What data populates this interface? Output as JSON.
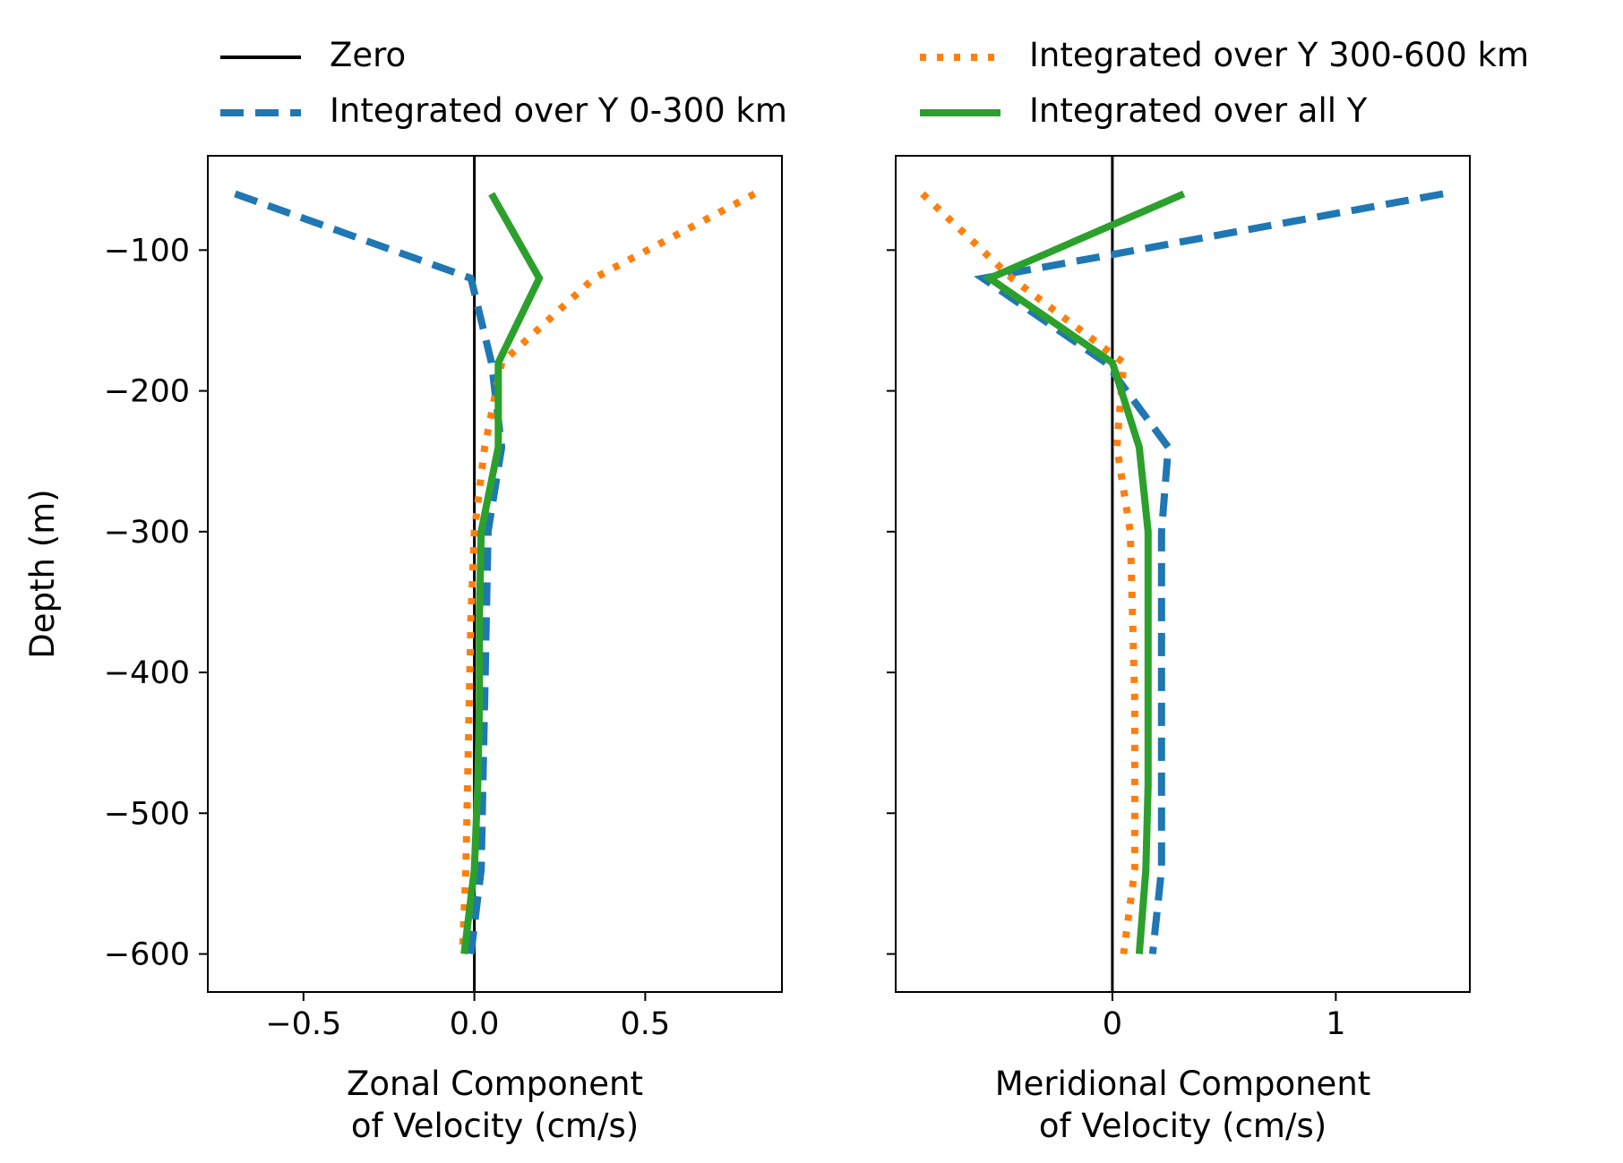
{
  "figure": {
    "legend": {
      "placement": "top, two columns above both panels",
      "entries": [
        {
          "key": "zero",
          "label": "Zero",
          "color": "#000000",
          "style": "solid"
        },
        {
          "key": "y0_300",
          "label": "Integrated over Y 0-300 km",
          "color": "#1f77b4",
          "style": "dashed"
        },
        {
          "key": "y300_600",
          "label": "Integrated over Y 300-600 km",
          "color": "#ff7f0e",
          "style": "dotted"
        },
        {
          "key": "all",
          "label": "Integrated over all Y",
          "color": "#2ca02c",
          "style": "solid"
        }
      ]
    }
  },
  "chart_data": [
    {
      "type": "line",
      "orientation": "profile (x = velocity, y = depth)",
      "xlabel_lines": [
        "Zonal Component",
        " of Velocity (cm/s)"
      ],
      "ylabel": "Depth (m)",
      "xlim": [
        -0.78,
        0.9
      ],
      "ylim": [
        -627,
        -33
      ],
      "xticks": [
        -0.5,
        0.0,
        0.5
      ],
      "xtick_labels": [
        "−0.5",
        "0.0",
        "0.5"
      ],
      "yticks": [
        -100,
        -200,
        -300,
        -400,
        -500,
        -600
      ],
      "ytick_labels": [
        "−100",
        "−200",
        "−300",
        "−400",
        "−500",
        "−600"
      ],
      "grid": false,
      "depth": [
        -60,
        -120,
        -180,
        -240,
        -300,
        -360,
        -420,
        -480,
        -540,
        -600
      ],
      "series": [
        {
          "key": "zero",
          "x": [
            0,
            0
          ],
          "y": [
            -33,
            -627
          ]
        },
        {
          "key": "y0_300",
          "x": [
            -0.7,
            -0.01,
            0.05,
            0.08,
            0.04,
            0.035,
            0.03,
            0.025,
            0.02,
            -0.01
          ]
        },
        {
          "key": "y300_600",
          "x": [
            0.82,
            0.35,
            0.08,
            0.03,
            0.0,
            -0.01,
            -0.015,
            -0.02,
            -0.025,
            -0.035
          ]
        },
        {
          "key": "all",
          "x": [
            0.05,
            0.19,
            0.07,
            0.07,
            0.02,
            0.015,
            0.015,
            0.01,
            0.0,
            -0.03
          ]
        }
      ]
    },
    {
      "type": "line",
      "orientation": "profile (x = velocity, y = depth)",
      "xlabel_lines": [
        "Meridional Component",
        " of Velocity (cm/s)"
      ],
      "ylabel": "",
      "xlim": [
        -0.97,
        1.6
      ],
      "ylim": [
        -627,
        -33
      ],
      "xticks": [
        0,
        1
      ],
      "xtick_labels": [
        "0",
        "1"
      ],
      "yticks": [
        -100,
        -200,
        -300,
        -400,
        -500,
        -600
      ],
      "ytick_labels": [],
      "grid": false,
      "depth": [
        -60,
        -120,
        -180,
        -240,
        -300,
        -360,
        -420,
        -480,
        -540,
        -600
      ],
      "series": [
        {
          "key": "zero",
          "x": [
            0,
            0
          ],
          "y": [
            -33,
            -627
          ]
        },
        {
          "key": "y0_300",
          "x": [
            1.48,
            -0.58,
            -0.03,
            0.25,
            0.22,
            0.22,
            0.22,
            0.22,
            0.22,
            0.18
          ]
        },
        {
          "key": "y300_600",
          "x": [
            -0.85,
            -0.45,
            0.05,
            0.02,
            0.08,
            0.09,
            0.1,
            0.1,
            0.1,
            0.05
          ]
        },
        {
          "key": "all",
          "x": [
            0.32,
            -0.55,
            0.0,
            0.12,
            0.16,
            0.16,
            0.16,
            0.16,
            0.15,
            0.12
          ]
        }
      ]
    }
  ]
}
